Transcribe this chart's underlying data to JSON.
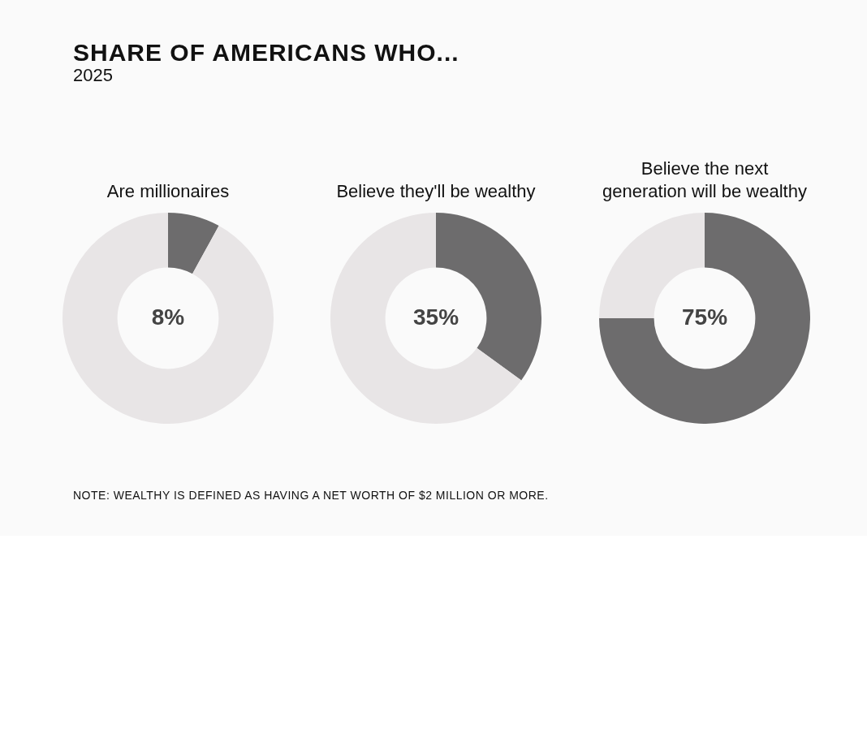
{
  "chart_data": [
    {
      "type": "other",
      "title": "SHARE OF AMERICANS WHO...",
      "subtitle": "2025",
      "annotations": [
        "NOTE: WEALTHY IS DEFINED AS HAVING A NET WORTH OF $2 MILLION OR MORE."
      ]
    },
    {
      "type": "donut",
      "title": "Are millionaires",
      "categories": [
        null,
        null
      ],
      "values": [
        8,
        92
      ],
      "colors": [
        "#6d6c6d",
        "#e8e5e6"
      ],
      "value_labels": [
        "8%",
        null
      ]
    },
    {
      "type": "donut",
      "title": "Believe they'll be wealthy",
      "categories": [
        null,
        null
      ],
      "values": [
        35,
        65
      ],
      "colors": [
        "#6d6c6d",
        "#e8e5e6"
      ],
      "value_labels": [
        "35%",
        null
      ]
    },
    {
      "type": "donut",
      "title": "Believe the next generation will be wealthy",
      "categories": [
        null,
        null
      ],
      "values": [
        75,
        25
      ],
      "colors": [
        "#6d6c6d",
        "#e8e5e6"
      ],
      "value_labels": [
        "75%",
        null
      ]
    }
  ]
}
